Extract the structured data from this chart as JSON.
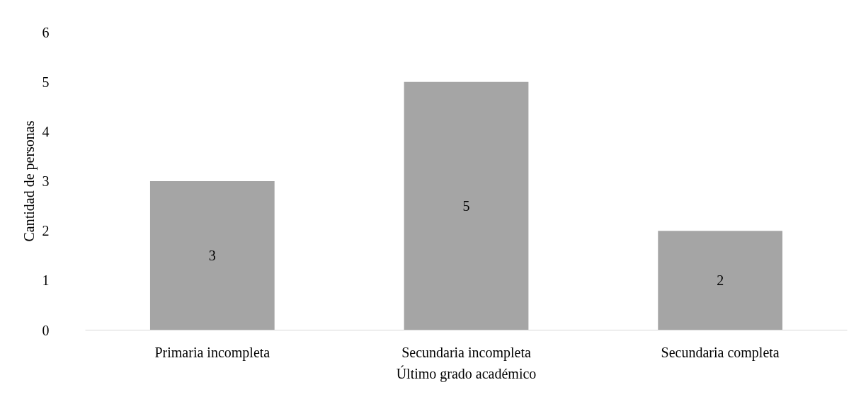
{
  "chart_data": {
    "type": "bar",
    "xlabel": "Último grado académico",
    "ylabel": "Cantidad de personas",
    "categories": [
      "Primaria incompleta",
      "Secundaria incompleta",
      "Secundaria completa"
    ],
    "values": [
      3,
      5,
      2
    ],
    "color": "#a5a5a5",
    "ylim": [
      0,
      6
    ],
    "yticks": [
      0,
      1,
      2,
      3,
      4,
      5,
      6
    ],
    "data_labels": true,
    "grid": false
  }
}
